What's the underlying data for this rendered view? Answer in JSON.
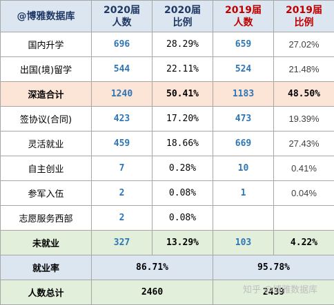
{
  "header": {
    "brand": "@博雅数据库",
    "col1_top": "2020届",
    "col1_bottom": "人数",
    "col2_top": "2020届",
    "col2_bottom": "比例",
    "col3_top": "2019届",
    "col3_bottom": "人数",
    "col4_top": "2019届",
    "col4_bottom": "比例"
  },
  "rows": [
    {
      "label": "国内升学",
      "n2020": "696",
      "p2020": "28.29%",
      "n2019": "659",
      "p2019": "27.02%"
    },
    {
      "label": "出国(境)留学",
      "n2020": "544",
      "p2020": "22.11%",
      "n2019": "524",
      "p2019": "21.48%"
    },
    {
      "label": "深造合计",
      "n2020": "1240",
      "p2020": "50.41%",
      "n2019": "1183",
      "p2019": "48.50%"
    },
    {
      "label": "签协议(合同)",
      "n2020": "423",
      "p2020": "17.20%",
      "n2019": "473",
      "p2019": "19.39%"
    },
    {
      "label": "灵活就业",
      "n2020": "459",
      "p2020": "18.66%",
      "n2019": "669",
      "p2019": "27.43%"
    },
    {
      "label": "自主创业",
      "n2020": "7",
      "p2020": "0.28%",
      "n2019": "10",
      "p2019": "0.41%"
    },
    {
      "label": "参军入伍",
      "n2020": "2",
      "p2020": "0.08%",
      "n2019": "1",
      "p2019": "0.04%"
    },
    {
      "label": "志愿服务西部",
      "n2020": "2",
      "p2020": "0.08%",
      "n2019": "",
      "p2019": ""
    },
    {
      "label": "未就业",
      "n2020": "327",
      "p2020": "13.29%",
      "n2019": "103",
      "p2019": "4.22%"
    }
  ],
  "employment_rate": {
    "label": "就业率",
    "v2020": "86.71%",
    "v2019": "95.78%"
  },
  "total": {
    "label": "人数总计",
    "v2020": "2460",
    "v2019": "2439"
  },
  "watermark": "知乎 @博雅数据库",
  "colors": {
    "header_bg": "#dce6f1",
    "sum_bg": "#fce4d6",
    "green_bg": "#e2efda",
    "year2019": "#c00000",
    "number_blue": "#2e75b6"
  }
}
